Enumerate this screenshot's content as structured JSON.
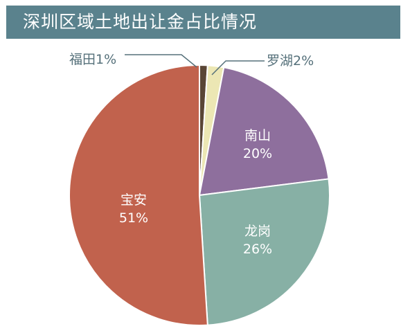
{
  "title": "深圳区域土地出让金占比情况",
  "chart_data": {
    "type": "pie",
    "title": "深圳区域土地出让金占比情况",
    "slices": [
      {
        "name": "福田",
        "value": 1,
        "label": "1%",
        "color": "#5a4636"
      },
      {
        "name": "罗湖",
        "value": 2,
        "label": "2%",
        "color": "#ece7b4"
      },
      {
        "name": "南山",
        "value": 20,
        "label": "20%",
        "color": "#8e6f9d"
      },
      {
        "name": "龙岗",
        "value": 26,
        "label": "26%",
        "color": "#87b0a5"
      },
      {
        "name": "宝安",
        "value": 51,
        "label": "51%",
        "color": "#c1624d"
      }
    ],
    "start_angle_deg": 0,
    "direction": "clockwise",
    "label_color_outside": "#55707a",
    "label_color_inside": "#ffffff"
  }
}
